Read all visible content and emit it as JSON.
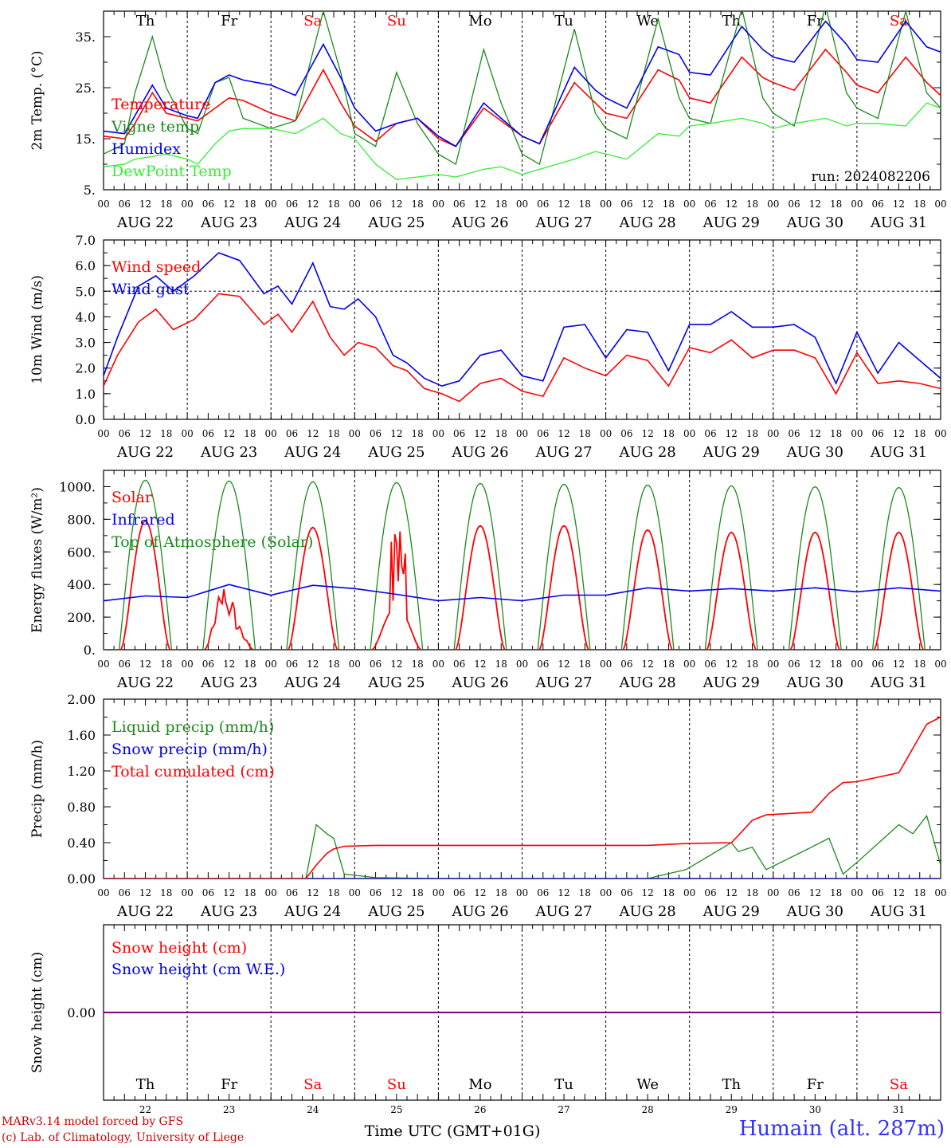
{
  "run_label": "run: 2024082206",
  "x_axis": {
    "title": "Time UTC (GMT+01G)",
    "start": "2024-08-22T00:00Z",
    "end": "2024-09-01T00:00Z",
    "hour_ticks": [
      "00",
      "06",
      "12",
      "18"
    ],
    "end_tick": "00",
    "date_labels": [
      "AUG 22",
      "AUG 23",
      "AUG 24",
      "AUG 25",
      "AUG 26",
      "AUG 27",
      "AUG 28",
      "AUG 29",
      "AUG 30",
      "AUG 31"
    ],
    "weekday_labels": [
      "Th",
      "Fr",
      "Sa",
      "Su",
      "Mo",
      "Tu",
      "We",
      "Th",
      "Fr",
      "Sa"
    ],
    "weekend_flags": [
      false,
      false,
      true,
      true,
      false,
      false,
      false,
      false,
      false,
      true
    ],
    "day_numbers": [
      "22",
      "23",
      "24",
      "25",
      "26",
      "27",
      "28",
      "29",
      "30",
      "31"
    ]
  },
  "footer": {
    "model": "MARv3.14 model forced by GFS",
    "credit": "(c) Lab. of Climatology, University of Liege",
    "location": "Humain (alt. 287m)"
  },
  "colors": {
    "red": "#ff0000",
    "green": "#1a8a1a",
    "blue": "#0000ee",
    "light_green": "#33ee33",
    "purple": "#7f007f",
    "weekend": "#ff0000",
    "footer_red": "#cc0000",
    "location": "#3333ff"
  },
  "chart_data": [
    {
      "type": "line",
      "ylabel": "2m Temp. (°C)",
      "ylim": [
        5,
        40
      ],
      "yticks": [
        "35.",
        "25.",
        "15.",
        "5."
      ],
      "ytick_values": [
        35,
        25,
        15,
        5
      ],
      "show_weekdays": true,
      "x": [
        "2024-08-22T00:00Z",
        "2024-08-22T06:00Z",
        "2024-08-22T09:00Z",
        "2024-08-22T14:00Z",
        "2024-08-22T18:00Z",
        "2024-08-23T00:00Z",
        "2024-08-23T03:00Z",
        "2024-08-23T08:00Z",
        "2024-08-23T12:00Z",
        "2024-08-23T16:00Z",
        "2024-08-24T00:00Z",
        "2024-08-24T07:00Z",
        "2024-08-24T15:00Z",
        "2024-08-24T20:00Z",
        "2024-08-25T00:00Z",
        "2024-08-25T06:00Z",
        "2024-08-25T12:00Z",
        "2024-08-25T18:00Z",
        "2024-08-26T00:00Z",
        "2024-08-26T05:00Z",
        "2024-08-26T13:00Z",
        "2024-08-26T18:00Z",
        "2024-08-27T00:00Z",
        "2024-08-27T05:00Z",
        "2024-08-27T15:00Z",
        "2024-08-27T21:00Z",
        "2024-08-28T00:00Z",
        "2024-08-28T06:00Z",
        "2024-08-28T15:00Z",
        "2024-08-28T21:00Z",
        "2024-08-29T00:00Z",
        "2024-08-29T06:00Z",
        "2024-08-29T15:00Z",
        "2024-08-29T21:00Z",
        "2024-08-30T00:00Z",
        "2024-08-30T06:00Z",
        "2024-08-30T15:00Z",
        "2024-08-30T21:00Z",
        "2024-08-31T00:00Z",
        "2024-08-31T06:00Z",
        "2024-08-31T14:00Z",
        "2024-08-31T20:00Z",
        "2024-09-01T00:00Z"
      ],
      "series": [
        {
          "name": "Temperature",
          "color": "red",
          "values": [
            15.5,
            15.0,
            18.0,
            24.0,
            20.0,
            19.0,
            18.5,
            21.0,
            23.0,
            22.5,
            20.0,
            18.5,
            28.5,
            22.0,
            17.5,
            14.5,
            18.0,
            19.0,
            15.0,
            13.5,
            21.0,
            18.5,
            15.5,
            14.0,
            26.0,
            22.0,
            20.0,
            19.0,
            28.5,
            26.5,
            23.0,
            22.0,
            31.0,
            27.0,
            26.0,
            24.5,
            32.5,
            28.0,
            25.5,
            24.0,
            31.0,
            26.0,
            23.5
          ]
        },
        {
          "name": "Vigne temp",
          "color": "green",
          "values": [
            12.0,
            14.0,
            24.0,
            35.0,
            25.0,
            17.0,
            16.0,
            26.0,
            27.0,
            19.0,
            17.0,
            18.5,
            40.0,
            28.0,
            16.0,
            13.5,
            28.0,
            18.0,
            12.0,
            10.0,
            32.5,
            22.0,
            12.0,
            10.0,
            36.5,
            20.0,
            17.0,
            15.0,
            38.5,
            23.0,
            19.0,
            18.0,
            40.5,
            23.0,
            20.0,
            17.5,
            41.0,
            24.0,
            21.0,
            19.0,
            40.0,
            24.0,
            21.0
          ]
        },
        {
          "name": "Humidex",
          "color": "blue",
          "values": [
            16.5,
            16.0,
            19.5,
            25.5,
            21.0,
            19.5,
            19.0,
            26.0,
            27.5,
            26.5,
            25.5,
            23.5,
            33.5,
            27.0,
            21.0,
            16.5,
            18.0,
            19.0,
            15.5,
            13.5,
            22.0,
            19.0,
            15.5,
            14.0,
            29.0,
            24.5,
            23.0,
            21.0,
            33.0,
            31.5,
            28.0,
            27.5,
            37.0,
            32.5,
            31.0,
            30.0,
            38.0,
            33.5,
            30.5,
            30.0,
            38.0,
            33.0,
            32.0
          ]
        },
        {
          "name": "DewPoint Temp",
          "color": "light_green",
          "values": [
            9.5,
            10.0,
            11.0,
            11.5,
            12.0,
            11.0,
            10.0,
            14.0,
            16.5,
            17.0,
            17.0,
            16.0,
            19.0,
            16.0,
            15.0,
            10.0,
            7.0,
            7.5,
            8.0,
            7.5,
            9.0,
            9.5,
            8.0,
            9.0,
            11.0,
            12.5,
            12.0,
            11.0,
            16.0,
            15.5,
            17.5,
            18.0,
            19.0,
            18.0,
            17.0,
            18.0,
            19.0,
            17.5,
            18.0,
            18.0,
            17.5,
            22.0,
            21.0
          ]
        }
      ]
    },
    {
      "type": "line",
      "ylabel": "10m Wind (m/s)",
      "ylim": [
        0,
        7
      ],
      "yticks": [
        "7.0",
        "6.0",
        "5.0",
        "4.0",
        "3.0",
        "2.0",
        "1.0",
        "0.0"
      ],
      "ytick_values": [
        7,
        6,
        5,
        4,
        3,
        2,
        1,
        0
      ],
      "reference_line": 5,
      "x": [
        "2024-08-22T00:00Z",
        "2024-08-22T04:00Z",
        "2024-08-22T10:00Z",
        "2024-08-22T15:00Z",
        "2024-08-22T20:00Z",
        "2024-08-23T02:00Z",
        "2024-08-23T09:00Z",
        "2024-08-23T15:00Z",
        "2024-08-23T22:00Z",
        "2024-08-24T02:00Z",
        "2024-08-24T06:00Z",
        "2024-08-24T12:00Z",
        "2024-08-24T17:00Z",
        "2024-08-24T21:00Z",
        "2024-08-25T01:00Z",
        "2024-08-25T06:00Z",
        "2024-08-25T11:00Z",
        "2024-08-25T15:00Z",
        "2024-08-25T20:00Z",
        "2024-08-26T01:00Z",
        "2024-08-26T06:00Z",
        "2024-08-26T12:00Z",
        "2024-08-26T18:00Z",
        "2024-08-27T00:00Z",
        "2024-08-27T06:00Z",
        "2024-08-27T12:00Z",
        "2024-08-27T18:00Z",
        "2024-08-28T00:00Z",
        "2024-08-28T06:00Z",
        "2024-08-28T12:00Z",
        "2024-08-28T18:00Z",
        "2024-08-29T00:00Z",
        "2024-08-29T06:00Z",
        "2024-08-29T12:00Z",
        "2024-08-29T18:00Z",
        "2024-08-30T00:00Z",
        "2024-08-30T06:00Z",
        "2024-08-30T12:00Z",
        "2024-08-30T18:00Z",
        "2024-08-31T00:00Z",
        "2024-08-31T06:00Z",
        "2024-08-31T12:00Z",
        "2024-08-31T18:00Z",
        "2024-09-01T00:00Z"
      ],
      "series": [
        {
          "name": "Wind speed",
          "color": "red",
          "values": [
            1.3,
            2.5,
            3.8,
            4.3,
            3.5,
            3.9,
            4.9,
            4.8,
            3.7,
            4.1,
            3.4,
            4.6,
            3.2,
            2.5,
            3.0,
            2.8,
            2.1,
            1.9,
            1.2,
            1.0,
            0.7,
            1.4,
            1.6,
            1.1,
            0.9,
            2.4,
            2.0,
            1.7,
            2.5,
            2.3,
            1.3,
            2.8,
            2.6,
            3.1,
            2.4,
            2.7,
            2.7,
            2.4,
            1.0,
            2.6,
            1.4,
            1.5,
            1.4,
            1.2
          ]
        },
        {
          "name": "Wind gust",
          "color": "blue",
          "values": [
            1.7,
            3.2,
            5.2,
            5.6,
            5.0,
            5.6,
            6.5,
            6.2,
            4.9,
            5.2,
            4.5,
            6.1,
            4.4,
            4.3,
            4.7,
            4.0,
            2.5,
            2.2,
            1.6,
            1.3,
            1.5,
            2.5,
            2.7,
            1.7,
            1.5,
            3.6,
            3.7,
            2.4,
            3.5,
            3.4,
            1.9,
            3.7,
            3.7,
            4.2,
            3.6,
            3.6,
            3.7,
            3.2,
            1.4,
            3.4,
            1.8,
            3.0,
            2.3,
            1.6
          ]
        }
      ]
    },
    {
      "type": "line",
      "ylabel": "Energy fluxes (W/m²)",
      "ylim": [
        0,
        1100
      ],
      "yticks": [
        "1000.",
        "800.",
        "600.",
        "400.",
        "200.",
        "0."
      ],
      "ytick_values": [
        1000,
        800,
        600,
        400,
        200,
        0
      ],
      "solar_peaks": [
        790,
        470,
        750,
        760,
        760,
        760,
        735,
        720,
        720,
        720
      ],
      "toa_peaks": [
        1040,
        1035,
        1030,
        1025,
        1020,
        1015,
        1010,
        1005,
        1000,
        995
      ],
      "x": [
        "2024-08-22T00:00Z",
        "2024-08-22T12:00Z",
        "2024-08-23T00:00Z",
        "2024-08-23T12:00Z",
        "2024-08-24T00:00Z",
        "2024-08-24T12:00Z",
        "2024-08-25T00:00Z",
        "2024-08-25T12:00Z",
        "2024-08-26T00:00Z",
        "2024-08-26T12:00Z",
        "2024-08-27T00:00Z",
        "2024-08-27T12:00Z",
        "2024-08-28T00:00Z",
        "2024-08-28T12:00Z",
        "2024-08-29T00:00Z",
        "2024-08-29T12:00Z",
        "2024-08-30T00:00Z",
        "2024-08-30T12:00Z",
        "2024-08-31T00:00Z",
        "2024-08-31T12:00Z",
        "2024-09-01T00:00Z"
      ],
      "series": [
        {
          "name": "Solar",
          "color": "red"
        },
        {
          "name": "Infrared",
          "color": "blue",
          "values": [
            300,
            330,
            320,
            400,
            335,
            395,
            375,
            340,
            300,
            320,
            300,
            335,
            335,
            380,
            360,
            375,
            360,
            380,
            355,
            380,
            360
          ]
        },
        {
          "name": "Top of Atmosphere (Solar)",
          "color": "green"
        }
      ]
    },
    {
      "type": "line",
      "ylabel": "Precip (mm/h)",
      "ylim": [
        0,
        2
      ],
      "yticks": [
        "2.00",
        "1.60",
        "1.20",
        "0.80",
        "0.40",
        "0.00"
      ],
      "ytick_values": [
        2.0,
        1.6,
        1.2,
        0.8,
        0.4,
        0.0
      ],
      "x": [
        "2024-08-22T00:00Z",
        "2024-08-24T10:00Z",
        "2024-08-24T13:00Z",
        "2024-08-24T16:00Z",
        "2024-08-24T18:00Z",
        "2024-08-24T21:00Z",
        "2024-08-25T06:00Z",
        "2024-08-26T00:00Z",
        "2024-08-28T12:00Z",
        "2024-08-28T23:00Z",
        "2024-08-29T12:00Z",
        "2024-08-29T14:00Z",
        "2024-08-29T18:00Z",
        "2024-08-29T22:00Z",
        "2024-08-30T11:00Z",
        "2024-08-30T16:00Z",
        "2024-08-30T20:00Z",
        "2024-08-31T00:00Z",
        "2024-08-31T12:00Z",
        "2024-08-31T16:00Z",
        "2024-08-31T20:00Z",
        "2024-09-01T00:00Z"
      ],
      "series": [
        {
          "name": "Liquid precip (mm/h)",
          "color": "green",
          "values": [
            0,
            0,
            0.6,
            0.5,
            0.45,
            0.05,
            0.01,
            0,
            0,
            0.1,
            0.4,
            0.3,
            0.35,
            0.1,
            0.35,
            0.45,
            0.05,
            0.18,
            0.6,
            0.5,
            0.7,
            0.15
          ]
        },
        {
          "name": "Snow precip (mm/h)",
          "color": "blue",
          "values": [
            0,
            0,
            0,
            0,
            0,
            0,
            0,
            0,
            0,
            0,
            0,
            0,
            0,
            0,
            0,
            0,
            0,
            0,
            0,
            0,
            0,
            0
          ]
        },
        {
          "name": "Total cumulated (cm)",
          "color": "red",
          "values": [
            0,
            0,
            0.15,
            0.28,
            0.33,
            0.36,
            0.37,
            0.37,
            0.37,
            0.39,
            0.4,
            0.48,
            0.65,
            0.71,
            0.74,
            0.95,
            1.07,
            1.08,
            1.18,
            1.45,
            1.72,
            1.8
          ]
        }
      ]
    },
    {
      "type": "line",
      "ylabel": "Snow height (cm)",
      "ylim": [
        -1,
        1
      ],
      "yticks": [
        "0.00"
      ],
      "ytick_values": [
        0
      ],
      "show_bottom_weekdays": true,
      "x": [
        "2024-08-22T00:00Z",
        "2024-09-01T00:00Z"
      ],
      "series": [
        {
          "name": "Snow height (cm)",
          "color": "red",
          "values": [
            0,
            0
          ]
        },
        {
          "name": "Snow height (cm W.E.)",
          "color": "blue",
          "values": [
            0,
            0
          ]
        }
      ]
    }
  ]
}
